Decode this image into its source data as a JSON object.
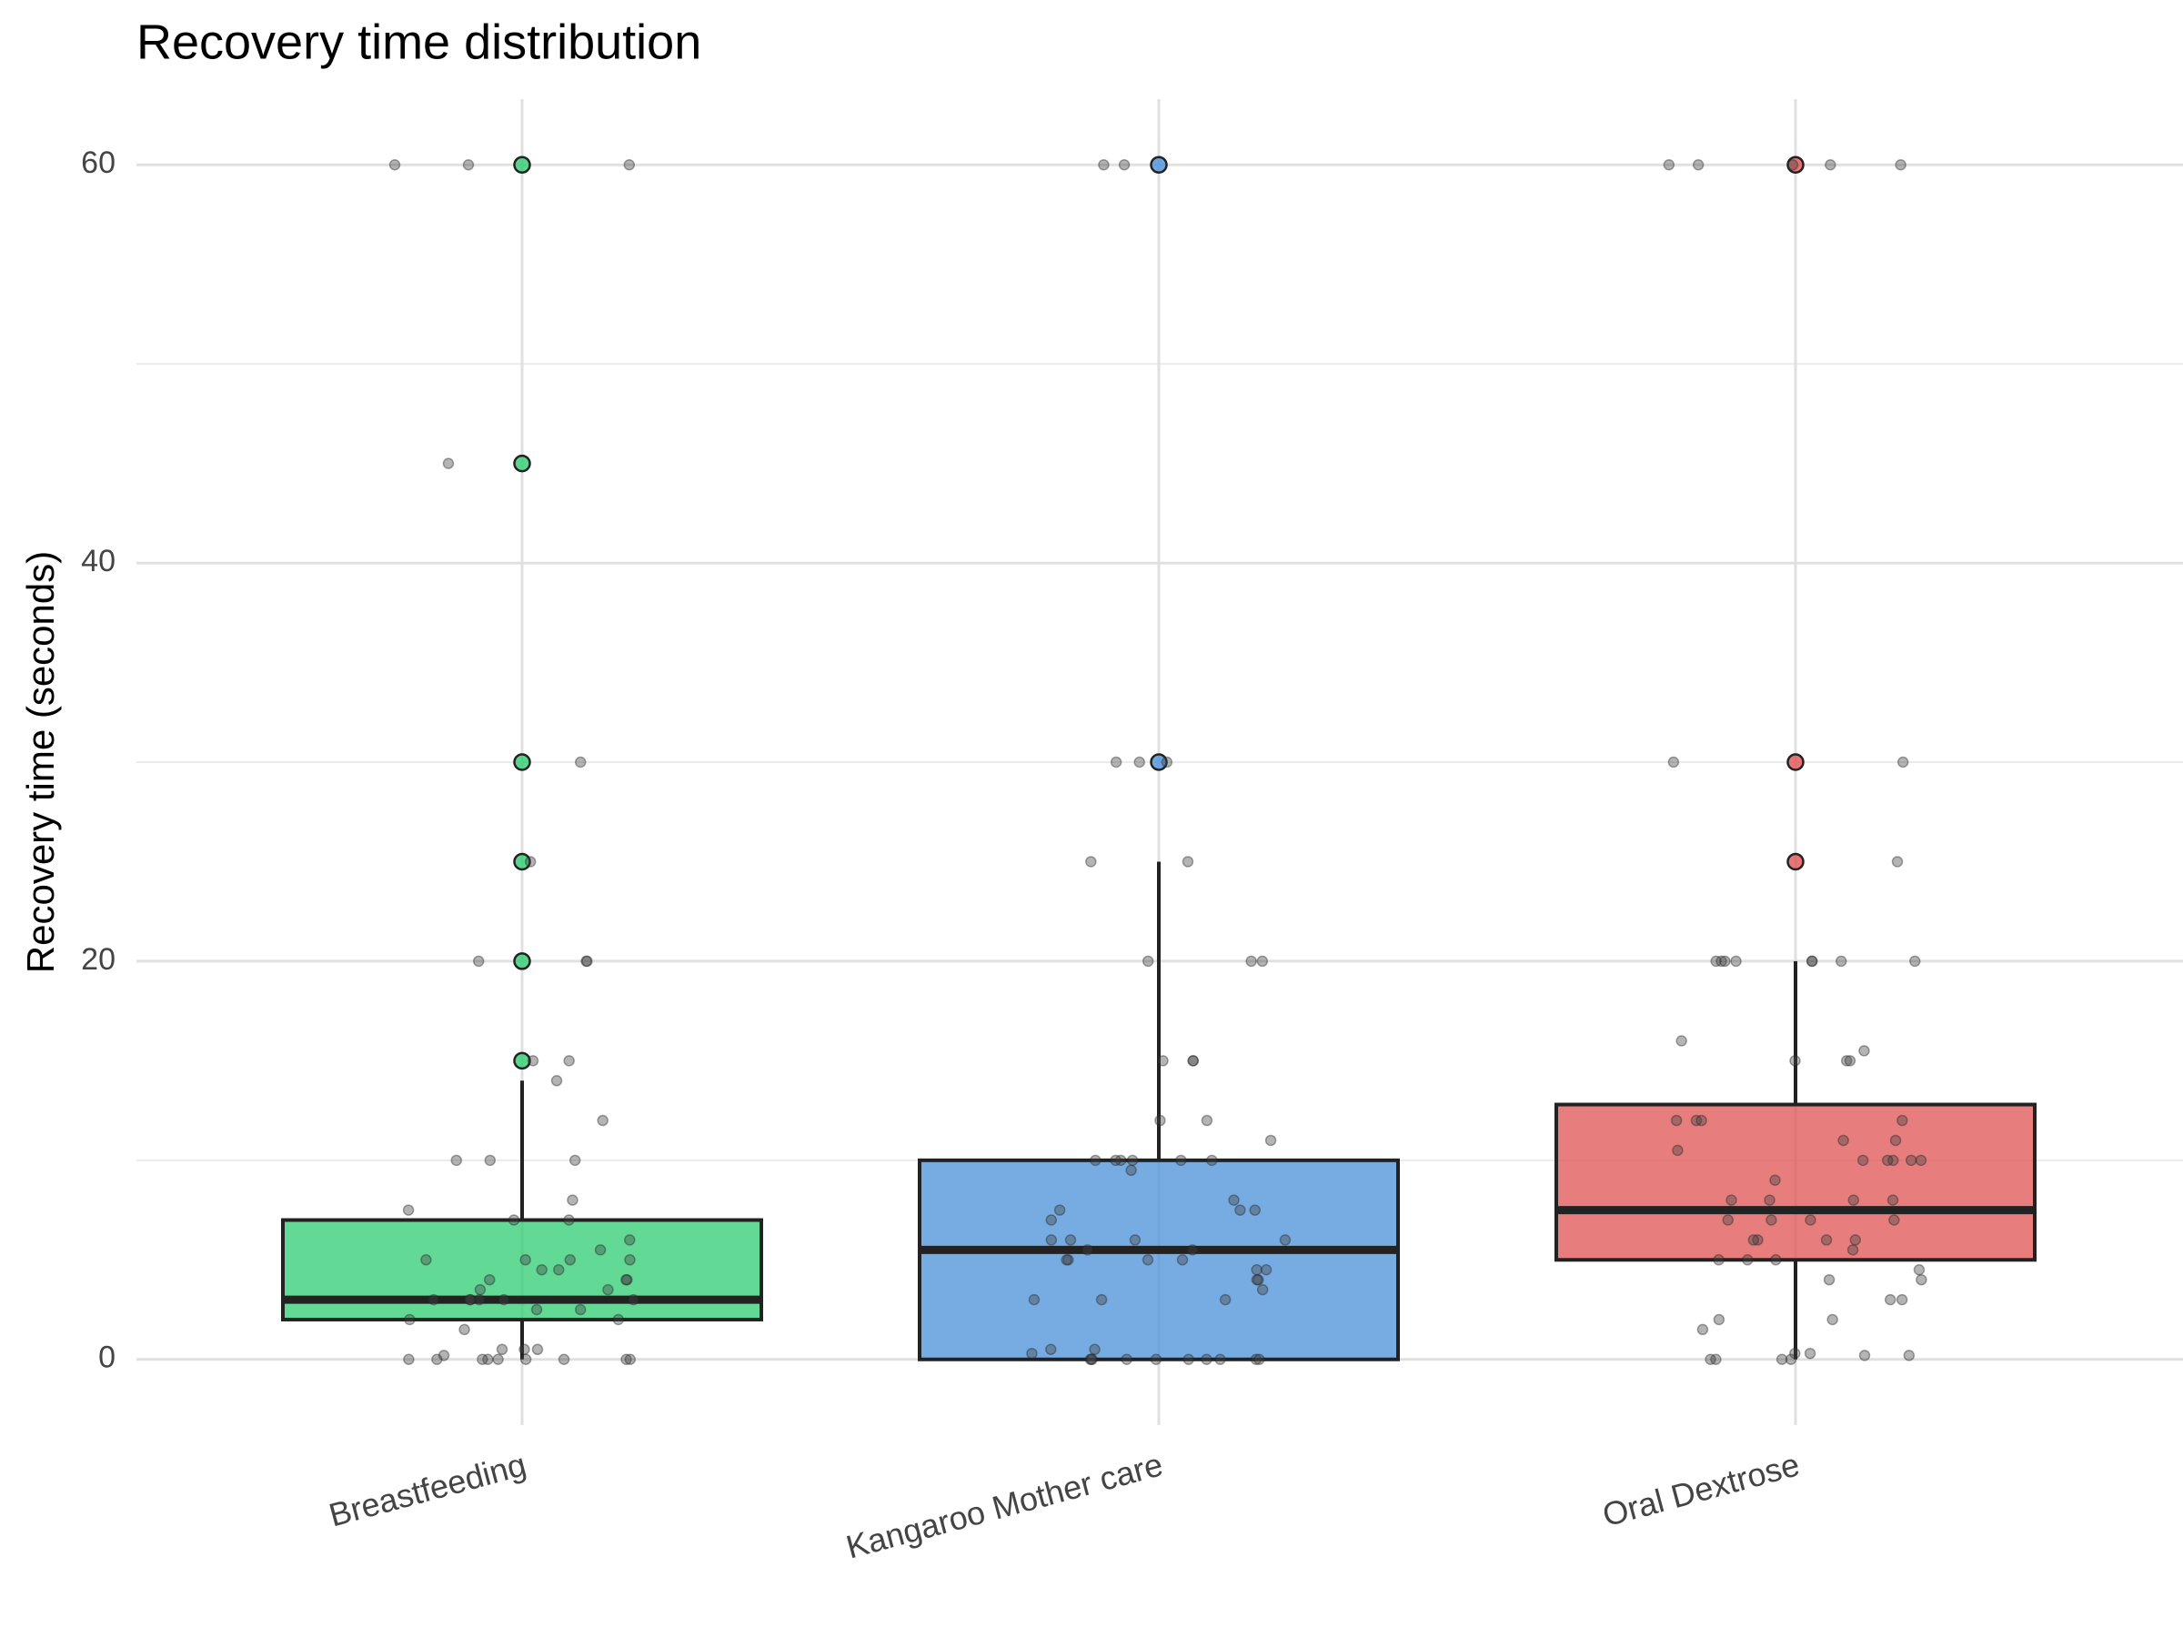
{
  "chart_data": {
    "type": "box",
    "title": "Recovery time distribution",
    "y_label": "Recovery time (seconds)",
    "ylim": [
      -3.3,
      63.3
    ],
    "yticks": [
      0,
      20,
      40,
      60
    ],
    "minor_yticks": [
      10,
      30,
      50
    ],
    "grid": true,
    "series": [
      {
        "name": "Breastfeeding",
        "color": "#2ecc71",
        "q1": 2,
        "median": 3,
        "q3": 7,
        "whisker_low": 0,
        "whisker_high": 14,
        "outliers": [
          15,
          20,
          25,
          30,
          45,
          60
        ],
        "points": [
          60,
          60,
          60,
          45,
          30,
          25,
          20,
          20,
          20,
          15,
          15,
          14,
          12,
          10,
          10,
          10,
          8,
          7.5,
          7,
          7,
          6,
          5.5,
          5,
          5,
          5,
          5,
          4.5,
          4.5,
          4,
          4,
          4,
          3.5,
          3.5,
          3,
          3,
          3,
          3,
          3,
          3,
          2.5,
          2.5,
          2,
          2,
          1.5,
          0.5,
          0.5,
          0.5,
          0.2,
          0,
          0,
          0,
          0,
          0,
          0,
          0,
          0,
          0
        ]
      },
      {
        "name": "Kangaroo Mother care",
        "color": "#4a90d9",
        "q1": 0,
        "median": 5.5,
        "q3": 10,
        "whisker_low": 0,
        "whisker_high": 25,
        "outliers": [
          30,
          60
        ],
        "points": [
          60,
          60,
          30,
          30,
          30,
          25,
          25,
          20,
          20,
          20,
          15,
          15,
          15,
          12,
          12,
          11,
          10,
          10,
          10,
          10,
          10,
          10,
          9.5,
          8,
          7.5,
          7.5,
          7.5,
          7,
          6,
          6,
          6,
          6,
          5.5,
          5.5,
          5,
          5,
          5,
          5,
          4.5,
          4.5,
          4,
          4,
          3.5,
          3,
          3,
          3,
          0.5,
          0.5,
          0.3,
          0,
          0,
          0,
          0,
          0,
          0,
          0,
          0,
          0,
          0
        ]
      },
      {
        "name": "Oral Dextrose",
        "color": "#e05252",
        "q1": 5,
        "median": 7.5,
        "q3": 12.8,
        "whisker_low": 0,
        "whisker_high": 20,
        "outliers": [
          25,
          30,
          60
        ],
        "points": [
          60,
          60,
          60,
          60,
          60,
          30,
          30,
          25,
          20,
          20,
          20,
          20,
          20,
          20,
          20,
          20,
          16,
          15.5,
          15,
          15,
          15,
          12,
          12,
          12,
          12,
          11,
          11,
          10.5,
          10,
          10,
          10,
          10,
          10,
          9,
          8,
          8,
          8,
          8,
          7,
          7,
          7,
          7,
          6,
          6,
          6,
          6,
          5.5,
          5,
          5,
          5,
          4.5,
          4,
          4,
          3,
          3,
          2,
          2,
          1.5,
          0.3,
          0.3,
          0.2,
          0.2,
          0,
          0,
          0,
          0
        ]
      }
    ]
  }
}
